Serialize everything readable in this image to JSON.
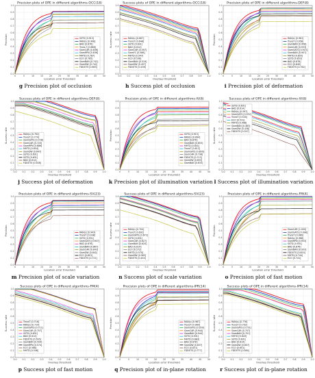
{
  "colors": [
    "#e8141c",
    "#1f3fbf",
    "#2bb24c",
    "#ff7f0e",
    "#d62bd6",
    "#17becf",
    "#9aa11a",
    "#7f7f7f",
    "#000000",
    "#8c564b",
    "#bcbd22",
    "#c07c30",
    "#ff9896"
  ],
  "chart_data": [
    {
      "letter": "g",
      "caption": "Precision plot of occlusion",
      "title": "Precision plots of OPE in different algorithms-OCC(18)",
      "type": "precision",
      "xlabel": "Location error threshold",
      "ylabel": "Precision",
      "legend_pos": "bottom-right",
      "legend": [
        "SSTD [0.913]",
        "RAN(s) [0.908]",
        "BAD [0.876]",
        "Trans-T [0.868]",
        "SiamCAR [0.836]",
        "SiamRPN [0.836]",
        "MHTD [0.787]",
        "ECO [0.785]",
        "SiamBAN [0.742]",
        "SiamDW [0.742]",
        "FDDOTS [0.663]"
      ],
      "series": [
        0.913,
        0.908,
        0.876,
        0.868,
        0.836,
        0.836,
        0.787,
        0.785,
        0.742,
        0.742,
        0.663
      ]
    },
    {
      "letter": "h",
      "caption": "Success plot of occlusion",
      "title": "Success plots of OPE in different algorithms-OCC(18)",
      "type": "success",
      "xlabel": "Overlap threshold",
      "ylabel": "Success rate",
      "legend_pos": "bottom-left",
      "legend": [
        "RAN(s) [0.667]",
        "TransT [0.648]",
        "SSTD [0.631]",
        "BAD [0.614]",
        "SiamCAR [0.597]",
        "SiamFC [0.586]",
        "MHTD [0.547]",
        "ECO [0.538]",
        "SiamBAN [0.519]",
        "SiamDW [0.457]",
        "FDDOTS [0.436]"
      ],
      "series": [
        0.667,
        0.648,
        0.631,
        0.614,
        0.597,
        0.586,
        0.547,
        0.538,
        0.519,
        0.457,
        0.436
      ]
    },
    {
      "letter": "i",
      "caption": "Precision plot of deformation",
      "title": "Precision plots of OPE in different algorithms-DEF(8)",
      "type": "precision",
      "xlabel": "Location error threshold",
      "ylabel": "Precision",
      "legend_pos": "bottom-right",
      "legend": [
        "RAN(s) [0.961]",
        "TransT [0.958]",
        "SiamBAN [0.958]",
        "SiamCAR [0.933]",
        "SiamGATS [0.915]",
        "SiamBAN [0.907]",
        "MHTD [0.855]",
        "SSTD [0.853]",
        "BAD [0.878]",
        "ECO [0.840]",
        "FDDOTS [0.762]"
      ],
      "series": [
        0.961,
        0.958,
        0.958,
        0.933,
        0.915,
        0.907,
        0.855,
        0.853,
        0.878,
        0.84,
        0.762
      ]
    },
    {
      "letter": "j",
      "caption": "Success plot of deformation",
      "title": "Success plots of OPE in different algorithms-DEF(8)",
      "type": "success",
      "xlabel": "Overlap threshold",
      "ylabel": "Success rate",
      "legend_pos": "bottom-left",
      "legend": [
        "RAN(s) [0.792]",
        "TransT [0.774]",
        "SiamGATS [0.728]",
        "SiamCAR [0.720]",
        "SiamRPN [0.686]",
        "MHTD [0.654]",
        "SiamDW [0.647]",
        "SSTD [0.631]",
        "SSTD [0.631]",
        "BAD [0.614]",
        "FDDOTS [0.508]"
      ],
      "series": [
        0.792,
        0.774,
        0.728,
        0.72,
        0.686,
        0.654,
        0.647,
        0.631,
        0.631,
        0.614,
        0.508
      ]
    },
    {
      "letter": "k",
      "caption": "Precision plot of illumination variation",
      "title": "Precision plots of OPE in different algorithms-IV(8)",
      "type": "precision",
      "xlabel": "Location error threshold",
      "ylabel": "Precision",
      "legend_pos": "bottom-right",
      "legend": [
        "SSTD [0.915]",
        "RAN(s) [0.894]",
        "BAD [0.876]",
        "SiamBAN [0.853]",
        "MHTD [0.841]",
        "TransT [0.812]",
        "SiamGATS [0.800]",
        "SiamCAR [0.738]",
        "FDDOTS [0.713]",
        "SiamDW [0.653]",
        "SiamBAN [0.633]"
      ],
      "series": [
        0.915,
        0.894,
        0.876,
        0.853,
        0.841,
        0.812,
        0.8,
        0.738,
        0.713,
        0.653,
        0.633
      ]
    },
    {
      "letter": "l",
      "caption": "Success plot of illumination variation",
      "title": "Success plots of OPE in different algorithms-IV(8)",
      "type": "success",
      "xlabel": "Overlap threshold",
      "ylabel": "Success rate",
      "legend_pos": "top-left",
      "legend": [
        "SSTD [0.631]",
        "BAD [0.614]",
        "RAN(s) [0.597]",
        "SiamGATS [0.552]",
        "TransT [0.545]",
        "ECO [0.531]",
        "MHTD [0.498]",
        "SiamBAN [0.463]",
        "SiamDW [0.438]",
        "FDDOTS [0.357]"
      ],
      "series": [
        0.631,
        0.614,
        0.597,
        0.552,
        0.545,
        0.531,
        0.498,
        0.463,
        0.438,
        0.357
      ]
    },
    {
      "letter": "m",
      "caption": "Precision plot of scale variation",
      "title": "Precision plots of OPE in different algorithms-SV(23)",
      "type": "precision",
      "xlabel": "Location error threshold",
      "ylabel": "Precision",
      "legend_pos": "bottom-right",
      "legend": [
        "RAN(s) [0.943]",
        "TransT [0.938]",
        "SSTD [0.931]",
        "SiamGATS [0.907]",
        "BAD [0.876]",
        "SiamBAN [0.867]",
        "SiamCAR [0.843]",
        "SiamDW [0.842]",
        "ECO [0.801]",
        "FDDOTS [0.721]"
      ],
      "series": [
        0.943,
        0.938,
        0.931,
        0.907,
        0.876,
        0.867,
        0.843,
        0.842,
        0.801,
        0.721
      ]
    },
    {
      "letter": "n",
      "caption": "Success plot of scale variation",
      "title": "Success plots of OPE in different algorithms-SV(23)",
      "type": "success",
      "xlabel": "Overlap threshold",
      "ylabel": "Success rate",
      "legend_pos": "bottom-left",
      "legend": [
        "RAN(s) [0.704]",
        "TransT [0.692]",
        "SiamGATS [0.672]",
        "SSTD [0.631]",
        "SiamCAR [0.627]",
        "SiamBAN [0.620]",
        "BAD [0.614]",
        "ECO [0.572]",
        "MHTD [0.570]",
        "SiamDW [0.563]",
        "FDDOTS [0.454]"
      ],
      "series": [
        0.704,
        0.692,
        0.672,
        0.631,
        0.627,
        0.62,
        0.614,
        0.572,
        0.57,
        0.563,
        0.454
      ]
    },
    {
      "letter": "o",
      "caption": "Precision plot of fast motion",
      "title": "Precision plots of OPE in different algorithms-FM(4)",
      "type": "precision",
      "xlabel": "Location error threshold",
      "ylabel": "Precision",
      "legend_pos": "bottom-right",
      "legend": [
        "SiamCAR [1.000]",
        "SiamGATS [0.998]",
        "TransT [0.980]",
        "RAN(s) [0.968]",
        "SiamRPN [0.953]",
        "SSTD [0.931]",
        "BAD [0.876]",
        "SiamBAN [0.933]",
        "FDDOTS [0.820]",
        "MHTD [0.744]",
        "ECO [0.741]"
      ],
      "series": [
        1.0,
        0.998,
        0.98,
        0.968,
        0.953,
        0.931,
        0.876,
        0.933,
        0.82,
        0.744,
        0.741
      ]
    },
    {
      "letter": "p",
      "caption": "Success plot of fast motion",
      "title": "Success plots of OPE in different algorithms-FM(4)",
      "type": "success",
      "xlabel": "Overlap threshold",
      "ylabel": "Success rate",
      "legend_pos": "bottom-left",
      "legend": [
        "TransT [0.716]",
        "RAN(s) [0.714]",
        "SiamGATS [0.711]",
        "SiamCAR [0.707]",
        "SSTD [0.631]",
        "BAD [0.614]",
        "FDDOTS [0.595]",
        "SiamBAN [0.594]",
        "SiamRPN [0.574]",
        "ECO [0.568]",
        "MHTD [0.546]"
      ],
      "series": [
        0.716,
        0.714,
        0.711,
        0.707,
        0.631,
        0.614,
        0.595,
        0.594,
        0.574,
        0.568,
        0.546
      ]
    },
    {
      "letter": "q",
      "caption": "Precision plot of in-plane rotation",
      "title": "Precision plots of OPE in different algorithms-IPR(14)",
      "type": "precision",
      "xlabel": "Location error threshold",
      "ylabel": "Precision",
      "legend_pos": "bottom-right",
      "legend": [
        "RAN(s) [0.987]",
        "TransT [0.960]",
        "SiamGATS [0.950]",
        "SiamCAR [0.944]",
        "SiamBAN [0.944]",
        "SSTD [0.931]",
        "MHTD [0.883]",
        "BAD [0.876]",
        "SiamDW [0.837]",
        "ECO [0.831]",
        "FDDOTS [0.777]"
      ],
      "series": [
        0.987,
        0.96,
        0.95,
        0.944,
        0.944,
        0.931,
        0.883,
        0.876,
        0.837,
        0.831,
        0.777
      ]
    },
    {
      "letter": "r",
      "caption": "Success plot of in-plane rotation",
      "title": "Success plots of OPE in different algorithms-IPR(14)",
      "type": "success",
      "xlabel": "Overlap threshold",
      "ylabel": "Success rate",
      "legend_pos": "bottom-left",
      "legend": [
        "RAN(s) [0.776]",
        "TransT [0.752]",
        "SiamGATS [0.731]",
        "SiamCAR [0.707]",
        "SiamBAN [0.701]",
        "MHTD [0.643]",
        "SSTD [0.631]",
        "BAD [0.614]",
        "SiamDW [0.607]",
        "ECO [0.601]",
        "FDDOTS [0.584]"
      ],
      "series": [
        0.776,
        0.752,
        0.731,
        0.707,
        0.701,
        0.643,
        0.631,
        0.614,
        0.607,
        0.601,
        0.584
      ]
    }
  ]
}
